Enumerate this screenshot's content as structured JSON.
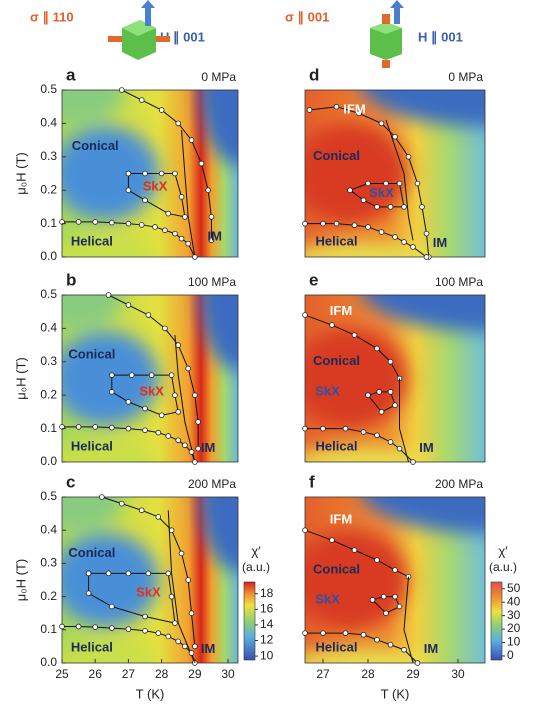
{
  "header": {
    "left_sigma": "σ ∥ 110",
    "left_field": "H ∥ 001",
    "right_sigma": "σ ∥ 001",
    "right_field": "H ∥ 001"
  },
  "chart_data": [
    {
      "type": "heatmap",
      "panel": "a",
      "pressure": "0 MPa",
      "side": "left",
      "row": 0,
      "xlim": [
        25,
        30.3
      ],
      "ylim": [
        0,
        0.5
      ],
      "ylabel": "μ₀H (T)",
      "yticks": [
        {
          "value": 0,
          "label": "0.0"
        },
        {
          "value": 0.1,
          "label": "0.1"
        },
        {
          "value": 0.2,
          "label": "0.2"
        },
        {
          "value": 0.3,
          "label": "0.3"
        },
        {
          "value": 0.4,
          "label": "0.4"
        },
        {
          "value": 0.5,
          "label": "0.5"
        }
      ],
      "lines": [
        {
          "markers": true,
          "x": [
            26.8,
            27.4,
            28.0,
            28.5,
            28.9,
            29.2,
            29.4,
            29.5,
            29.5
          ],
          "y": [
            0.5,
            0.47,
            0.44,
            0.4,
            0.35,
            0.28,
            0.2,
            0.12,
            0.05
          ]
        },
        {
          "markers": false,
          "x": [
            28.6,
            28.7,
            28.8,
            29.0
          ],
          "y": [
            0.38,
            0.25,
            0.12,
            0.0
          ]
        },
        {
          "markers": true,
          "x": [
            27.0,
            27.5,
            28.0,
            28.4,
            28.6,
            28.7,
            28.2,
            27.5,
            27.0,
            27.0
          ],
          "y": [
            0.25,
            0.25,
            0.25,
            0.25,
            0.18,
            0.12,
            0.13,
            0.17,
            0.2,
            0.25
          ]
        },
        {
          "markers": true,
          "x": [
            25.0,
            25.5,
            26.0,
            26.5,
            27.0,
            27.4,
            27.8,
            28.1,
            28.4,
            28.6,
            28.8,
            29.0
          ],
          "y": [
            0.105,
            0.105,
            0.105,
            0.103,
            0.1,
            0.096,
            0.09,
            0.08,
            0.07,
            0.055,
            0.04,
            0.0
          ]
        }
      ],
      "annotations": [
        {
          "text": "Conical",
          "x": 26.0,
          "y": 0.33,
          "color": "#1a2a5a"
        },
        {
          "text": "SkX",
          "x": 27.8,
          "y": 0.21,
          "color": "#e0301e"
        },
        {
          "text": "Helical",
          "x": 25.9,
          "y": 0.045,
          "color": "#1a2a5a"
        },
        {
          "text": "IM",
          "x": 29.6,
          "y": 0.06,
          "color": "#1a2a5a"
        }
      ]
    },
    {
      "type": "heatmap",
      "panel": "b",
      "pressure": "100 MPa",
      "side": "left",
      "row": 1,
      "xlim": [
        25,
        30.3
      ],
      "ylim": [
        0,
        0.5
      ],
      "ylabel": "μ₀H (T)",
      "yticks": [
        {
          "value": 0,
          "label": "0.0"
        },
        {
          "value": 0.1,
          "label": "0.1"
        },
        {
          "value": 0.2,
          "label": "0.2"
        },
        {
          "value": 0.3,
          "label": "0.3"
        },
        {
          "value": 0.4,
          "label": "0.4"
        },
        {
          "value": 0.5,
          "label": "0.5"
        }
      ],
      "lines": [
        {
          "markers": true,
          "x": [
            26.4,
            27.0,
            27.6,
            28.1,
            28.5,
            28.8,
            29.0,
            29.1,
            29.1
          ],
          "y": [
            0.5,
            0.47,
            0.44,
            0.4,
            0.35,
            0.28,
            0.2,
            0.12,
            0.04
          ]
        },
        {
          "markers": false,
          "x": [
            28.4,
            28.5,
            28.7,
            29.0
          ],
          "y": [
            0.38,
            0.26,
            0.12,
            0.0
          ]
        },
        {
          "markers": true,
          "x": [
            26.5,
            27.1,
            27.7,
            28.3,
            28.4,
            28.5,
            28.0,
            27.5,
            27.0,
            26.5,
            26.5
          ],
          "y": [
            0.26,
            0.26,
            0.26,
            0.26,
            0.2,
            0.15,
            0.14,
            0.16,
            0.18,
            0.21,
            0.26
          ]
        },
        {
          "markers": true,
          "x": [
            25.0,
            25.5,
            26.0,
            26.5,
            27.0,
            27.5,
            27.9,
            28.2,
            28.5,
            28.7,
            28.9,
            29.0
          ],
          "y": [
            0.105,
            0.105,
            0.105,
            0.103,
            0.1,
            0.095,
            0.088,
            0.078,
            0.065,
            0.05,
            0.03,
            0.0
          ]
        }
      ],
      "annotations": [
        {
          "text": "Conical",
          "x": 25.9,
          "y": 0.32,
          "color": "#1a2a5a"
        },
        {
          "text": "SkX",
          "x": 27.7,
          "y": 0.21,
          "color": "#e0301e"
        },
        {
          "text": "Helical",
          "x": 25.9,
          "y": 0.045,
          "color": "#1a2a5a"
        },
        {
          "text": "IM",
          "x": 29.4,
          "y": 0.04,
          "color": "#1a2a5a"
        }
      ]
    },
    {
      "type": "heatmap",
      "panel": "c",
      "pressure": "200 MPa",
      "side": "left",
      "row": 2,
      "xlim": [
        25,
        30.3
      ],
      "ylim": [
        0,
        0.5
      ],
      "ylabel": "μ₀H (T)",
      "xlabel": "T (K)",
      "yticks": [
        {
          "value": 0,
          "label": "0.0"
        },
        {
          "value": 0.1,
          "label": "0.1"
        },
        {
          "value": 0.2,
          "label": "0.2"
        },
        {
          "value": 0.3,
          "label": "0.3"
        },
        {
          "value": 0.4,
          "label": "0.4"
        },
        {
          "value": 0.5,
          "label": "0.5"
        }
      ],
      "xticks": [
        25,
        26,
        27,
        28,
        29,
        30
      ],
      "lines": [
        {
          "markers": true,
          "x": [
            26.2,
            26.8,
            27.4,
            27.9,
            28.3,
            28.6,
            28.8,
            28.9,
            29.0
          ],
          "y": [
            0.5,
            0.48,
            0.46,
            0.44,
            0.4,
            0.33,
            0.25,
            0.15,
            0.05
          ]
        },
        {
          "markers": false,
          "x": [
            28.2,
            28.3,
            28.5,
            29.0
          ],
          "y": [
            0.46,
            0.27,
            0.12,
            0.0
          ]
        },
        {
          "markers": true,
          "x": [
            25.8,
            26.4,
            27.0,
            27.6,
            28.2,
            28.3,
            28.4,
            27.5,
            26.5,
            25.8,
            25.8
          ],
          "y": [
            0.27,
            0.27,
            0.27,
            0.27,
            0.27,
            0.2,
            0.12,
            0.14,
            0.17,
            0.21,
            0.27
          ]
        },
        {
          "markers": true,
          "x": [
            25.0,
            25.5,
            26.0,
            26.5,
            27.0,
            27.5,
            27.9,
            28.2,
            28.5,
            28.7,
            28.9,
            29.0
          ],
          "y": [
            0.11,
            0.11,
            0.108,
            0.105,
            0.102,
            0.097,
            0.09,
            0.08,
            0.065,
            0.05,
            0.03,
            0.0
          ]
        }
      ],
      "annotations": [
        {
          "text": "Conical",
          "x": 25.9,
          "y": 0.33,
          "color": "#1a2a5a"
        },
        {
          "text": "SkX",
          "x": 27.6,
          "y": 0.21,
          "color": "#e0301e"
        },
        {
          "text": "Helical",
          "x": 25.9,
          "y": 0.045,
          "color": "#1a2a5a"
        },
        {
          "text": "IM",
          "x": 29.4,
          "y": 0.04,
          "color": "#1a2a5a"
        }
      ],
      "colorbar": {
        "label": "χ′",
        "unit": "(a.u.)",
        "lim": [
          9.5,
          19.5
        ],
        "ticks": [
          10,
          12,
          14,
          16,
          18
        ]
      }
    },
    {
      "type": "heatmap",
      "panel": "d",
      "pressure": "0 MPa",
      "side": "right",
      "row": 0,
      "xlim": [
        26.6,
        30.6
      ],
      "ylim": [
        0,
        0.5
      ],
      "lines": [
        {
          "markers": true,
          "x": [
            26.7,
            27.3,
            27.8,
            28.3,
            28.6,
            28.9,
            29.1,
            29.2,
            29.3,
            29.35
          ],
          "y": [
            0.44,
            0.45,
            0.43,
            0.4,
            0.36,
            0.3,
            0.22,
            0.15,
            0.07,
            0.0
          ]
        },
        {
          "markers": false,
          "x": [
            28.4,
            28.8,
            28.9,
            29.0
          ],
          "y": [
            0.41,
            0.25,
            0.12,
            0.05
          ]
        },
        {
          "markers": true,
          "x": [
            27.6,
            28.0,
            28.4,
            28.7,
            28.8,
            28.5,
            28.2,
            27.9,
            27.6
          ],
          "y": [
            0.2,
            0.22,
            0.22,
            0.22,
            0.15,
            0.15,
            0.15,
            0.17,
            0.2
          ]
        },
        {
          "markers": true,
          "x": [
            26.6,
            27.0,
            27.3,
            27.7,
            28.0,
            28.3,
            28.6,
            28.8,
            29.0,
            29.3
          ],
          "y": [
            0.1,
            0.1,
            0.1,
            0.095,
            0.09,
            0.075,
            0.06,
            0.045,
            0.03,
            0.0
          ]
        }
      ],
      "annotations": [
        {
          "text": "IFM",
          "x": 27.7,
          "y": 0.44,
          "color": "#ffffff"
        },
        {
          "text": "Conical",
          "x": 27.3,
          "y": 0.3,
          "color": "#1a2a5a"
        },
        {
          "text": "SkX",
          "x": 28.3,
          "y": 0.19,
          "color": "#3050a0"
        },
        {
          "text": "Helical",
          "x": 27.3,
          "y": 0.045,
          "color": "#1a2a5a"
        },
        {
          "text": "IM",
          "x": 29.6,
          "y": 0.04,
          "color": "#1a2a5a"
        }
      ]
    },
    {
      "type": "heatmap",
      "panel": "e",
      "pressure": "100 MPa",
      "side": "right",
      "row": 1,
      "xlim": [
        26.6,
        30.6
      ],
      "ylim": [
        0,
        0.5
      ],
      "lines": [
        {
          "markers": true,
          "x": [
            26.6,
            27.2,
            27.7,
            28.2,
            28.5,
            28.7
          ],
          "y": [
            0.44,
            0.41,
            0.38,
            0.34,
            0.3,
            0.25
          ]
        },
        {
          "markers": false,
          "x": [
            28.7,
            28.7,
            28.9
          ],
          "y": [
            0.25,
            0.1,
            0.0
          ]
        },
        {
          "markers": true,
          "x": [
            28.0,
            28.25,
            28.5,
            28.6,
            28.3,
            28.0
          ],
          "y": [
            0.2,
            0.21,
            0.21,
            0.17,
            0.15,
            0.2
          ]
        },
        {
          "markers": true,
          "x": [
            26.6,
            27.0,
            27.5,
            27.9,
            28.2,
            28.5,
            28.7,
            29.0
          ],
          "y": [
            0.1,
            0.1,
            0.1,
            0.09,
            0.08,
            0.06,
            0.04,
            0.0
          ]
        }
      ],
      "annotations": [
        {
          "text": "IFM",
          "x": 27.4,
          "y": 0.45,
          "color": "#ffffff"
        },
        {
          "text": "Conical",
          "x": 27.3,
          "y": 0.3,
          "color": "#1a2a5a"
        },
        {
          "text": "SkX",
          "x": 27.1,
          "y": 0.21,
          "color": "#3050a0"
        },
        {
          "text": "Helical",
          "x": 27.3,
          "y": 0.045,
          "color": "#1a2a5a"
        },
        {
          "text": "IM",
          "x": 29.3,
          "y": 0.04,
          "color": "#1a2a5a"
        }
      ]
    },
    {
      "type": "heatmap",
      "panel": "f",
      "pressure": "200 MPa",
      "side": "right",
      "row": 2,
      "xlim": [
        26.6,
        30.6
      ],
      "ylim": [
        0,
        0.5
      ],
      "xlabel": "T (K)",
      "xticks": [
        27,
        28,
        29,
        30
      ],
      "lines": [
        {
          "markers": true,
          "x": [
            26.6,
            27.2,
            27.7,
            28.2,
            28.6,
            28.9
          ],
          "y": [
            0.4,
            0.37,
            0.34,
            0.31,
            0.28,
            0.26
          ]
        },
        {
          "markers": false,
          "x": [
            28.9,
            28.8,
            29.0
          ],
          "y": [
            0.26,
            0.1,
            0.0
          ]
        },
        {
          "markers": true,
          "x": [
            28.1,
            28.35,
            28.6,
            28.7,
            28.4,
            28.1
          ],
          "y": [
            0.19,
            0.2,
            0.2,
            0.17,
            0.15,
            0.19
          ]
        },
        {
          "markers": true,
          "x": [
            26.6,
            27.0,
            27.5,
            27.9,
            28.2,
            28.5,
            28.8,
            29.1
          ],
          "y": [
            0.09,
            0.09,
            0.09,
            0.085,
            0.07,
            0.055,
            0.04,
            0.0
          ]
        }
      ],
      "annotations": [
        {
          "text": "IFM",
          "x": 27.4,
          "y": 0.43,
          "color": "#ffffff"
        },
        {
          "text": "Conical",
          "x": 27.3,
          "y": 0.28,
          "color": "#1a2a5a"
        },
        {
          "text": "SkX",
          "x": 27.1,
          "y": 0.19,
          "color": "#3050a0"
        },
        {
          "text": "Helical",
          "x": 27.3,
          "y": 0.045,
          "color": "#1a2a5a"
        },
        {
          "text": "IM",
          "x": 29.4,
          "y": 0.04,
          "color": "#1a2a5a"
        }
      ],
      "colorbar": {
        "label": "χ′",
        "unit": "(a.u.)",
        "lim": [
          -3,
          55
        ],
        "ticks": [
          0,
          10,
          20,
          30,
          40,
          50
        ]
      }
    }
  ]
}
